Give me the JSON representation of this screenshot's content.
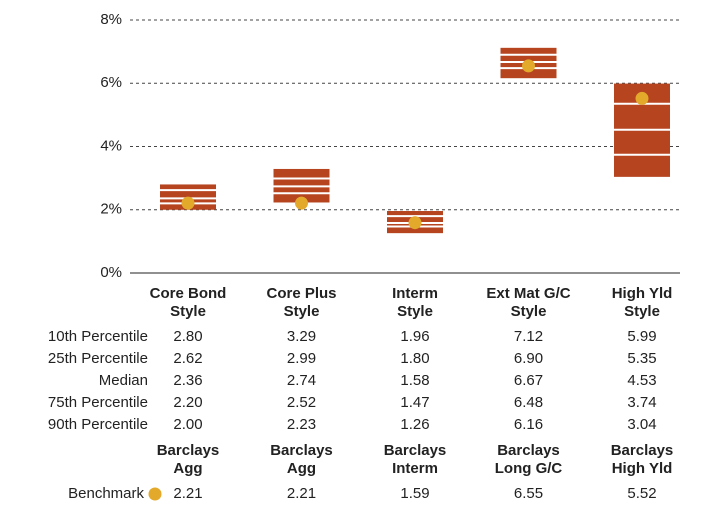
{
  "chart_data": {
    "type": "floating_bar",
    "categories": [
      [
        "Core Bond",
        "Style"
      ],
      [
        "Core Plus",
        "Style"
      ],
      [
        "Interm",
        "Style"
      ],
      [
        "Ext Mat G/C",
        "Style"
      ],
      [
        "High Yld",
        "Style"
      ]
    ],
    "ylim": [
      0,
      8
    ],
    "yticks": [
      {
        "value": 0,
        "label": "0%"
      },
      {
        "value": 2,
        "label": "2%"
      },
      {
        "value": 4,
        "label": "4%"
      },
      {
        "value": 6,
        "label": "6%"
      },
      {
        "value": 8,
        "label": "8%"
      }
    ],
    "grid": true,
    "color": "#b5441f",
    "series": [
      {
        "name": "10th Percentile",
        "values": [
          2.8,
          3.29,
          1.96,
          7.12,
          5.99
        ],
        "value_labels": [
          "2.80",
          "3.29",
          "1.96",
          "7.12",
          "5.99"
        ]
      },
      {
        "name": "25th Percentile",
        "values": [
          2.62,
          2.99,
          1.8,
          6.9,
          5.35
        ],
        "value_labels": [
          "2.62",
          "2.99",
          "1.80",
          "6.90",
          "5.35"
        ]
      },
      {
        "name": "Median",
        "values": [
          2.36,
          2.74,
          1.58,
          6.67,
          4.53
        ],
        "value_labels": [
          "2.36",
          "2.74",
          "1.58",
          "6.67",
          "4.53"
        ]
      },
      {
        "name": "75th Percentile",
        "values": [
          2.2,
          2.52,
          1.47,
          6.48,
          3.74
        ],
        "value_labels": [
          "2.20",
          "2.52",
          "1.47",
          "6.48",
          "3.74"
        ]
      },
      {
        "name": "90th Percentile",
        "values": [
          2.0,
          2.23,
          1.26,
          6.16,
          3.04
        ],
        "value_labels": [
          "2.00",
          "2.23",
          "1.26",
          "6.16",
          "3.04"
        ]
      }
    ],
    "benchmark": {
      "name": "Benchmark",
      "color": "#e3a92b",
      "labels": [
        [
          "Barclays",
          "Agg"
        ],
        [
          "Barclays",
          "Agg"
        ],
        [
          "Barclays",
          "Interm"
        ],
        [
          "Barclays",
          "Long G/C"
        ],
        [
          "Barclays",
          "High Yld"
        ]
      ],
      "values": [
        2.21,
        2.21,
        1.59,
        6.55,
        5.52
      ],
      "value_labels": [
        "2.21",
        "2.21",
        "1.59",
        "6.55",
        "5.52"
      ]
    }
  }
}
